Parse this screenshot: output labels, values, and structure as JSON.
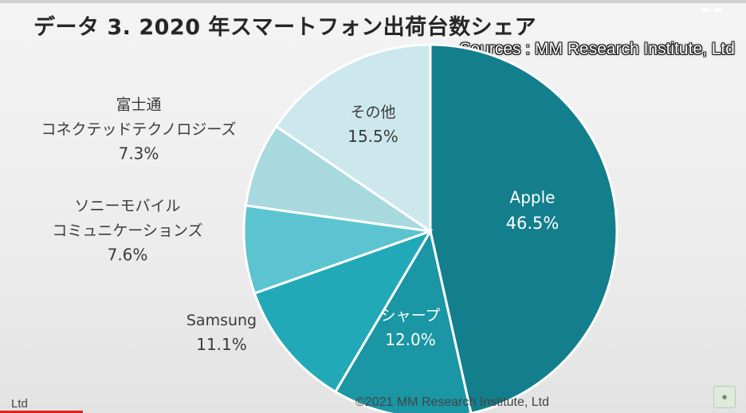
{
  "title": "データ 3. 2020 年スマートフォン出荷台数シェア",
  "sources": "Sources : MM Research Institute, Ltd",
  "footer": {
    "copyright": "©2021 MM Research Institute, Ltd",
    "left_text": "Ltd"
  },
  "colors": {
    "apple": "#137f8c",
    "sharp": "#1a96a4",
    "samsung": "#22a9b8",
    "sony": "#5bc4d0",
    "fujitsu": "#a8d9df",
    "other": "#cde8ec"
  },
  "chart_data": {
    "type": "pie",
    "title": "データ 3. 2020 年スマートフォン出荷台数シェア",
    "start": "12 o'clock, clockwise",
    "slices": [
      {
        "key": "apple",
        "label": [
          "Apple"
        ],
        "value": 46.5,
        "display": "46.5%",
        "label_position": "inside"
      },
      {
        "key": "sharp",
        "label": [
          "シャープ"
        ],
        "value": 12.0,
        "display": "12.0%",
        "label_position": "inside"
      },
      {
        "key": "samsung",
        "label": [
          "Samsung"
        ],
        "value": 11.1,
        "display": "11.1%",
        "label_position": "outside-left"
      },
      {
        "key": "sony",
        "label": [
          "ソニーモバイル",
          "コミュニケーションズ"
        ],
        "value": 7.6,
        "display": "7.6%",
        "label_position": "outside-left"
      },
      {
        "key": "fujitsu",
        "label": [
          "富士通",
          "コネクテッドテクノロジーズ"
        ],
        "value": 7.3,
        "display": "7.3%",
        "label_position": "outside-left"
      },
      {
        "key": "other",
        "label": [
          "その他"
        ],
        "value": 15.5,
        "display": "15.5%",
        "label_position": "inside"
      }
    ]
  }
}
